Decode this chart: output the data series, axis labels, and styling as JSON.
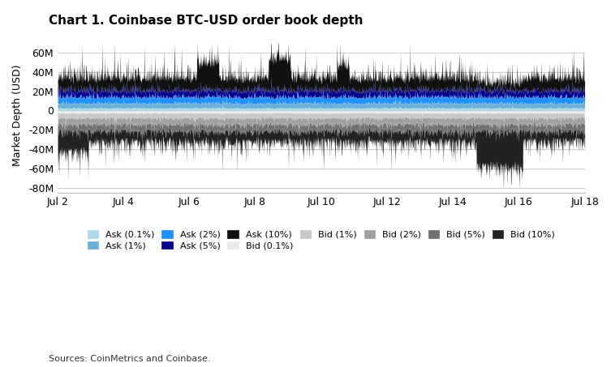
{
  "title": "Chart 1. Coinbase BTC-USD order book depth",
  "ylabel": "Market Depth (USD)",
  "source": "Sources: CoinMetrics and Coinbase.",
  "ylim": [
    -85000000,
    75000000
  ],
  "yticks": [
    -80000000,
    -60000000,
    -40000000,
    -20000000,
    0,
    20000000,
    40000000,
    60000000
  ],
  "xtick_labels": [
    "Jul 2",
    "Jul 4",
    "Jul 6",
    "Jul 8",
    "Jul 10",
    "Jul 12",
    "Jul 14",
    "Jul 16",
    "Jul 18"
  ],
  "n_points": 1700,
  "ask_colors": {
    "0.1%": "#add8e6",
    "1%": "#6ab0d8",
    "2%": "#1e90ff",
    "5%": "#00008B",
    "10%": "#111111"
  },
  "bid_colors": {
    "0.1%": "#e8e8e8",
    "1%": "#c8c8c8",
    "2%": "#a0a0a0",
    "5%": "#707070",
    "10%": "#222222"
  },
  "legend_items": [
    {
      "label": "Ask (0.1%)",
      "color": "#add8e6"
    },
    {
      "label": "Ask (1%)",
      "color": "#6ab0d8"
    },
    {
      "label": "Ask (2%)",
      "color": "#1e90ff"
    },
    {
      "label": "Ask (5%)",
      "color": "#00008B"
    },
    {
      "label": "Ask (10%)",
      "color": "#111111"
    },
    {
      "label": "Bid (0.1%)",
      "color": "#e8e8e8"
    },
    {
      "label": "Bid (1%)",
      "color": "#c8c8c8"
    },
    {
      "label": "Bid (2%)",
      "color": "#a0a0a0"
    },
    {
      "label": "Bid (5%)",
      "color": "#707070"
    },
    {
      "label": "Bid (10%)",
      "color": "#222222"
    }
  ],
  "background_color": "#ffffff",
  "grid_color": "#cccccc"
}
